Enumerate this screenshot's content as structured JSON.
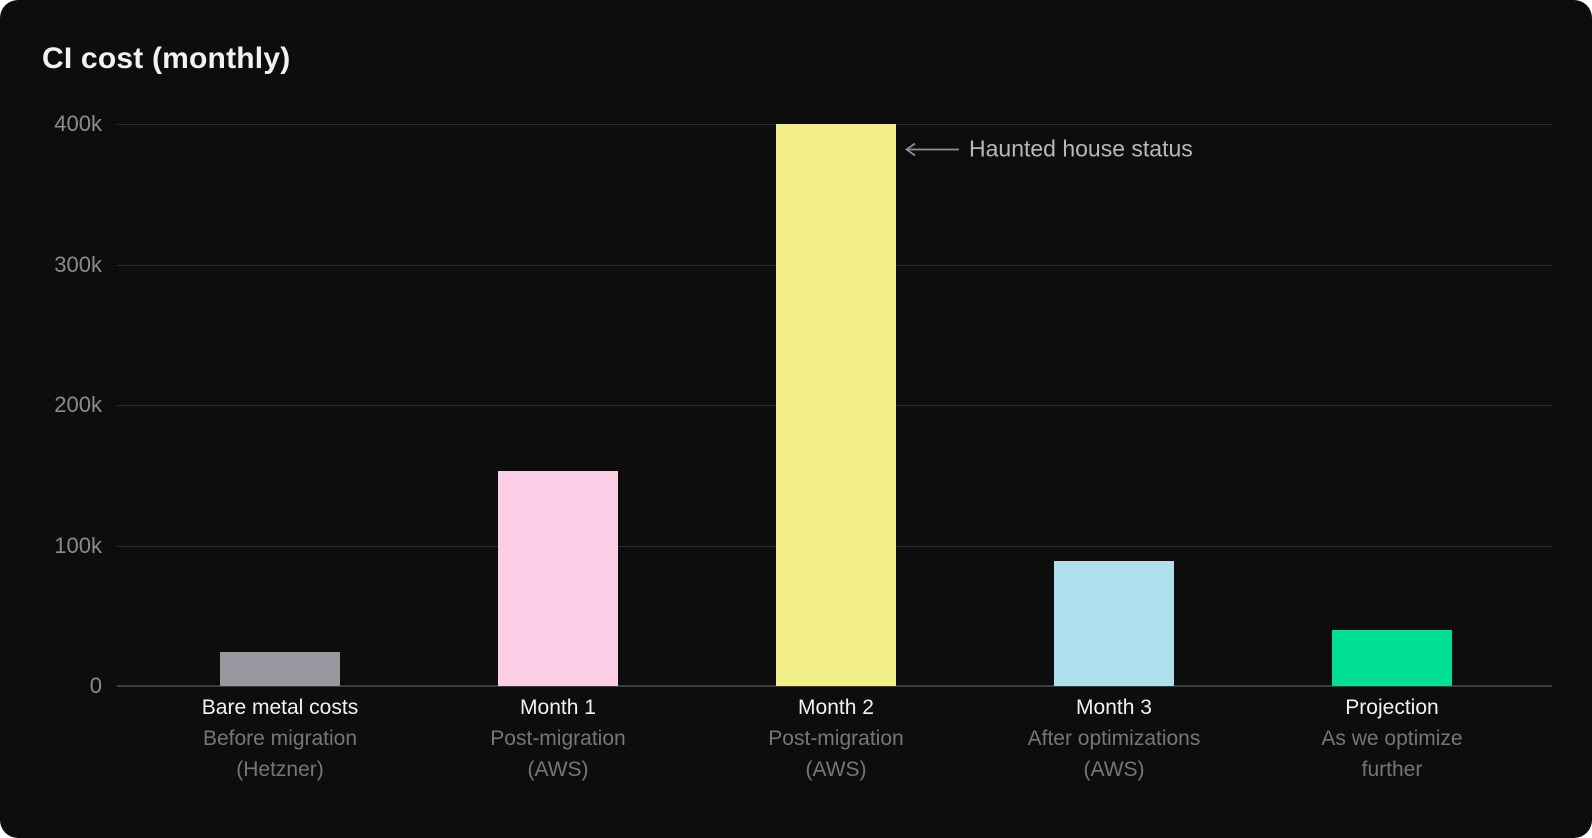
{
  "header": {
    "title": "CI cost (monthly)"
  },
  "theme": {
    "card_background": "#0d0d0e",
    "title_color": "#f2f2f3",
    "axis_label_color": "#8a8b91",
    "sublabel_color": "#75767c",
    "annotation_color": "#b7b8bc",
    "gridline_color": "#2b2c2f",
    "baseline_color": "#3a3b3f"
  },
  "chart_data": {
    "type": "bar",
    "title": "CI cost (monthly)",
    "xlabel": "",
    "ylabel": "",
    "ylim": [
      0,
      400000
    ],
    "grid": true,
    "legend": false,
    "y_ticks": [
      {
        "label": "400k",
        "value": 400000
      },
      {
        "label": "300k",
        "value": 300000
      },
      {
        "label": "200k",
        "value": 200000
      },
      {
        "label": "100k",
        "value": 100000
      },
      {
        "label": "0",
        "value": 0
      }
    ],
    "bars": [
      {
        "category": "Bare metal costs",
        "sublines": [
          "Before migration",
          "(Hetzner)"
        ],
        "value": 24000,
        "color": "#97989f"
      },
      {
        "category": "Month 1",
        "sublines": [
          "Post-migration",
          "(AWS)"
        ],
        "value": 153000,
        "color": "#fccee5"
      },
      {
        "category": "Month 2",
        "sublines": [
          "Post-migration",
          "(AWS)"
        ],
        "value": 400000,
        "color": "#f1ee85"
      },
      {
        "category": "Month 3",
        "sublines": [
          "After optimizations",
          "(AWS)"
        ],
        "value": 89000,
        "color": "#addfec"
      },
      {
        "category": "Projection",
        "sublines": [
          "As we optimize",
          "further"
        ],
        "value": 40000,
        "color": "#00df96"
      }
    ],
    "annotation": {
      "text": "Haunted house status",
      "points_to": "Month 2",
      "arrow": "long-left-arrow"
    }
  }
}
